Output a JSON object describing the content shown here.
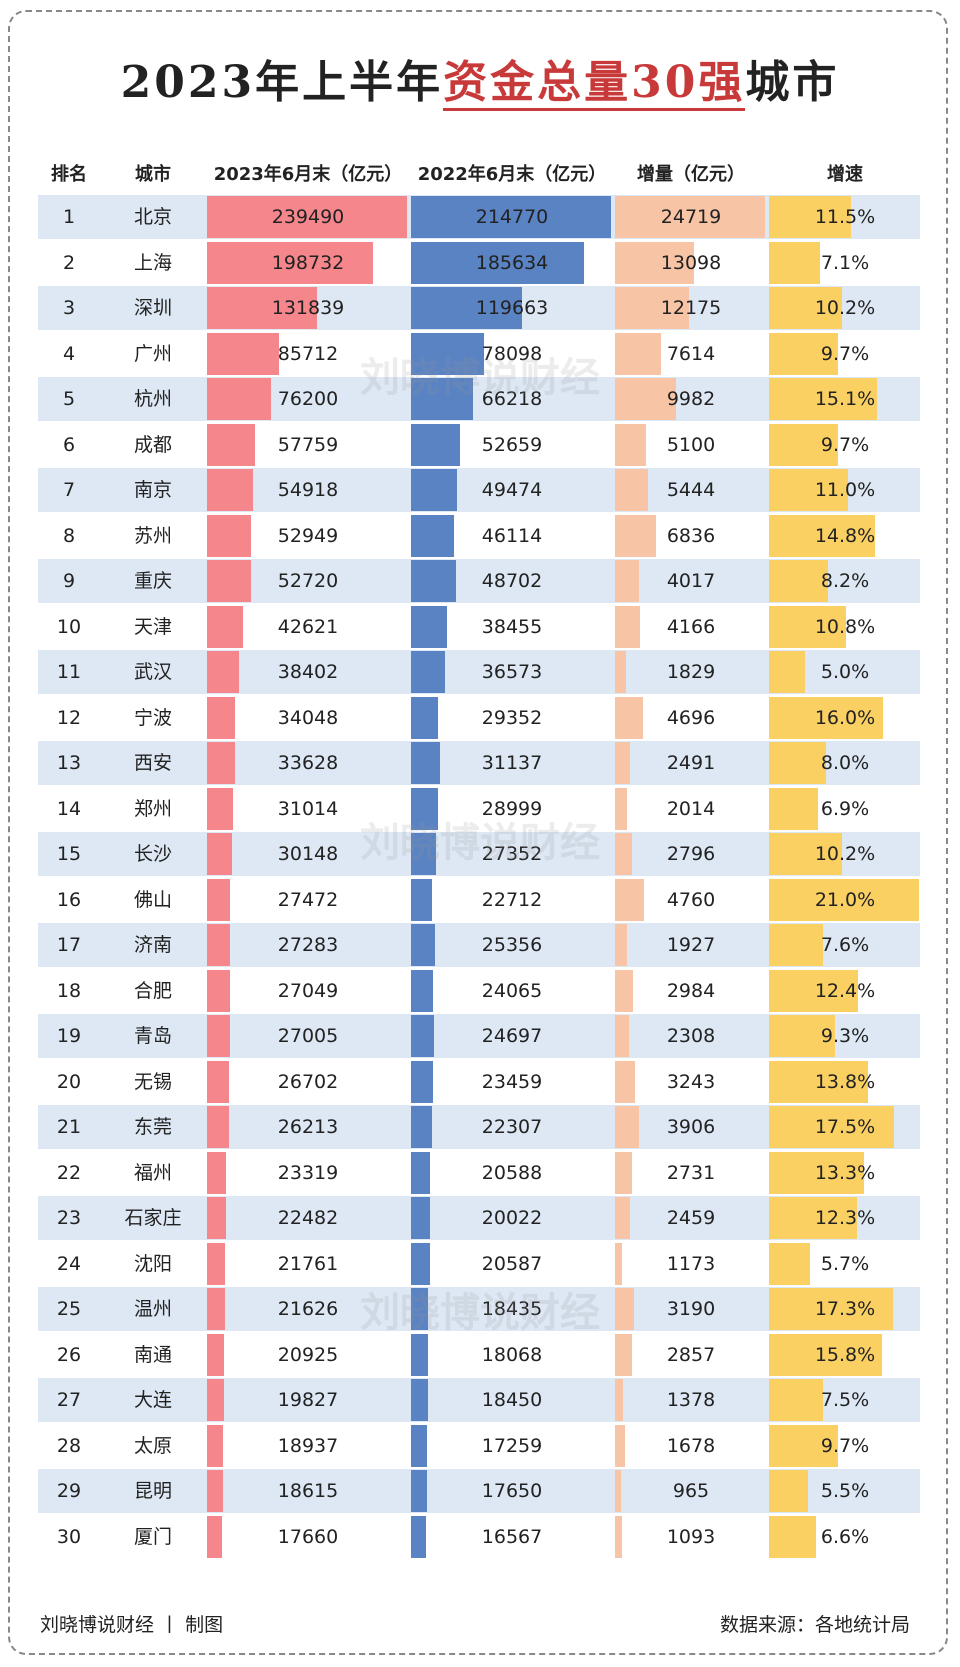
{
  "header": {
    "title": [
      "2023年上半年",
      "资金总量30强",
      "城市"
    ]
  },
  "table": {
    "columns": [
      "排名",
      "城市",
      "2023年6月末（亿元）",
      "2022年6月末（亿元）",
      "增量（亿元）",
      "增速"
    ],
    "rows": [
      {
        "rank": 1,
        "city": "北京",
        "y2023": 239490,
        "y2022": 214770,
        "inc": 24719,
        "rate": {
          "value": 11.5,
          "label": "11.5%"
        }
      },
      {
        "rank": 2,
        "city": "上海",
        "y2023": 198732,
        "y2022": 185634,
        "inc": 13098,
        "rate": {
          "value": 7.1,
          "label": "7.1%"
        }
      },
      {
        "rank": 3,
        "city": "深圳",
        "y2023": 131839,
        "y2022": 119663,
        "inc": 12175,
        "rate": {
          "value": 10.2,
          "label": "10.2%"
        }
      },
      {
        "rank": 4,
        "city": "广州",
        "y2023": 85712,
        "y2022": 78098,
        "inc": 7614,
        "rate": {
          "value": 9.7,
          "label": "9.7%"
        }
      },
      {
        "rank": 5,
        "city": "杭州",
        "y2023": 76200,
        "y2022": 66218,
        "inc": 9982,
        "rate": {
          "value": 15.1,
          "label": "15.1%"
        }
      },
      {
        "rank": 6,
        "city": "成都",
        "y2023": 57759,
        "y2022": 52659,
        "inc": 5100,
        "rate": {
          "value": 9.7,
          "label": "9.7%"
        }
      },
      {
        "rank": 7,
        "city": "南京",
        "y2023": 54918,
        "y2022": 49474,
        "inc": 5444,
        "rate": {
          "value": 11.0,
          "label": "11.0%"
        }
      },
      {
        "rank": 8,
        "city": "苏州",
        "y2023": 52949,
        "y2022": 46114,
        "inc": 6836,
        "rate": {
          "value": 14.8,
          "label": "14.8%"
        }
      },
      {
        "rank": 9,
        "city": "重庆",
        "y2023": 52720,
        "y2022": 48702,
        "inc": 4017,
        "rate": {
          "value": 8.2,
          "label": "8.2%"
        }
      },
      {
        "rank": 10,
        "city": "天津",
        "y2023": 42621,
        "y2022": 38455,
        "inc": 4166,
        "rate": {
          "value": 10.8,
          "label": "10.8%"
        }
      },
      {
        "rank": 11,
        "city": "武汉",
        "y2023": 38402,
        "y2022": 36573,
        "inc": 1829,
        "rate": {
          "value": 5.0,
          "label": "5.0%"
        }
      },
      {
        "rank": 12,
        "city": "宁波",
        "y2023": 34048,
        "y2022": 29352,
        "inc": 4696,
        "rate": {
          "value": 16.0,
          "label": "16.0%"
        }
      },
      {
        "rank": 13,
        "city": "西安",
        "y2023": 33628,
        "y2022": 31137,
        "inc": 2491,
        "rate": {
          "value": 8.0,
          "label": "8.0%"
        }
      },
      {
        "rank": 14,
        "city": "郑州",
        "y2023": 31014,
        "y2022": 28999,
        "inc": 2014,
        "rate": {
          "value": 6.9,
          "label": "6.9%"
        }
      },
      {
        "rank": 15,
        "city": "长沙",
        "y2023": 30148,
        "y2022": 27352,
        "inc": 2796,
        "rate": {
          "value": 10.2,
          "label": "10.2%"
        }
      },
      {
        "rank": 16,
        "city": "佛山",
        "y2023": 27472,
        "y2022": 22712,
        "inc": 4760,
        "rate": {
          "value": 21.0,
          "label": "21.0%"
        }
      },
      {
        "rank": 17,
        "city": "济南",
        "y2023": 27283,
        "y2022": 25356,
        "inc": 1927,
        "rate": {
          "value": 7.6,
          "label": "7.6%"
        }
      },
      {
        "rank": 18,
        "city": "合肥",
        "y2023": 27049,
        "y2022": 24065,
        "inc": 2984,
        "rate": {
          "value": 12.4,
          "label": "12.4%"
        }
      },
      {
        "rank": 19,
        "city": "青岛",
        "y2023": 27005,
        "y2022": 24697,
        "inc": 2308,
        "rate": {
          "value": 9.3,
          "label": "9.3%"
        }
      },
      {
        "rank": 20,
        "city": "无锡",
        "y2023": 26702,
        "y2022": 23459,
        "inc": 3243,
        "rate": {
          "value": 13.8,
          "label": "13.8%"
        }
      },
      {
        "rank": 21,
        "city": "东莞",
        "y2023": 26213,
        "y2022": 22307,
        "inc": 3906,
        "rate": {
          "value": 17.5,
          "label": "17.5%"
        }
      },
      {
        "rank": 22,
        "city": "福州",
        "y2023": 23319,
        "y2022": 20588,
        "inc": 2731,
        "rate": {
          "value": 13.3,
          "label": "13.3%"
        }
      },
      {
        "rank": 23,
        "city": "石家庄",
        "y2023": 22482,
        "y2022": 20022,
        "inc": 2459,
        "rate": {
          "value": 12.3,
          "label": "12.3%"
        }
      },
      {
        "rank": 24,
        "city": "沈阳",
        "y2023": 21761,
        "y2022": 20587,
        "inc": 1173,
        "rate": {
          "value": 5.7,
          "label": "5.7%"
        }
      },
      {
        "rank": 25,
        "city": "温州",
        "y2023": 21626,
        "y2022": 18435,
        "inc": 3190,
        "rate": {
          "value": 17.3,
          "label": "17.3%"
        }
      },
      {
        "rank": 26,
        "city": "南通",
        "y2023": 20925,
        "y2022": 18068,
        "inc": 2857,
        "rate": {
          "value": 15.8,
          "label": "15.8%"
        }
      },
      {
        "rank": 27,
        "city": "大连",
        "y2023": 19827,
        "y2022": 18450,
        "inc": 1378,
        "rate": {
          "value": 7.5,
          "label": "7.5%"
        }
      },
      {
        "rank": 28,
        "city": "太原",
        "y2023": 18937,
        "y2022": 17259,
        "inc": 1678,
        "rate": {
          "value": 9.7,
          "label": "9.7%"
        }
      },
      {
        "rank": 29,
        "city": "昆明",
        "y2023": 18615,
        "y2022": 17650,
        "inc": 965,
        "rate": {
          "value": 5.5,
          "label": "5.5%"
        }
      },
      {
        "rank": 30,
        "city": "厦门",
        "y2023": 17660,
        "y2022": 16567,
        "inc": 1093,
        "rate": {
          "value": 6.6,
          "label": "6.6%"
        }
      }
    ]
  },
  "watermark": "刘晓博说财经",
  "footer": {
    "left": "刘晓博说财经 丨 制图",
    "right": "数据来源：各地统计局"
  }
}
